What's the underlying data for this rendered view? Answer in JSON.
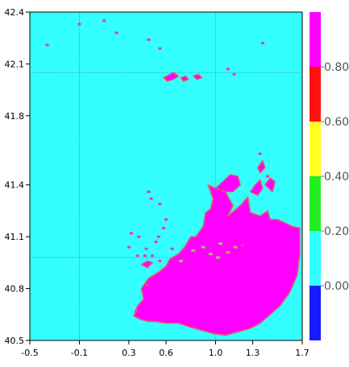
{
  "chart_data": {
    "type": "heatmap",
    "title": "",
    "xlabel": "",
    "ylabel": "",
    "xlim": [
      -0.5,
      1.7
    ],
    "ylim": [
      40.5,
      42.4
    ],
    "x_ticks": [
      "-0.5",
      "-0.1",
      "0.3",
      "0.6",
      "1.0",
      "1.3",
      "1.7"
    ],
    "x_tick_values": [
      -0.5,
      -0.1,
      0.3,
      0.6,
      1.0,
      1.3,
      1.7
    ],
    "y_ticks": [
      "42.4",
      "42.1",
      "41.8",
      "41.4",
      "41.1",
      "40.8",
      "40.5"
    ],
    "y_tick_values": [
      42.4,
      42.1,
      41.8,
      41.4,
      41.1,
      40.8,
      40.5
    ],
    "grid": true,
    "grid_lines": {
      "x": [
        -0.1,
        1.0
      ],
      "y": [
        42.05,
        40.98
      ]
    },
    "background_value_color": "#33ffff",
    "colorbar": {
      "levels": [
        {
          "range": [
            -0.2,
            0.0
          ],
          "color": "#1a1aff"
        },
        {
          "range": [
            0.0,
            0.2
          ],
          "color": "#33ffff"
        },
        {
          "range": [
            0.2,
            0.4
          ],
          "color": "#22ee22"
        },
        {
          "range": [
            0.4,
            0.6
          ],
          "color": "#ffff22"
        },
        {
          "range": [
            0.6,
            0.8
          ],
          "color": "#ff1111"
        },
        {
          "range": [
            0.8,
            1.0
          ],
          "color": "#ff00ff"
        }
      ],
      "labels": [
        "0.00",
        "0.20",
        "0.40",
        "0.60",
        "0.80"
      ]
    },
    "high_value_region": {
      "value": 0.9,
      "color": "#ff00ff",
      "edge_color": "#e06060",
      "outline": [
        [
          0.34,
          40.64
        ],
        [
          0.37,
          40.7
        ],
        [
          0.42,
          40.74
        ],
        [
          0.4,
          40.8
        ],
        [
          0.46,
          40.86
        ],
        [
          0.55,
          40.9
        ],
        [
          0.6,
          40.93
        ],
        [
          0.63,
          40.97
        ],
        [
          0.7,
          41.0
        ],
        [
          0.75,
          41.04
        ],
        [
          0.8,
          41.1
        ],
        [
          0.84,
          41.1
        ],
        [
          0.9,
          41.16
        ],
        [
          0.92,
          41.24
        ],
        [
          0.96,
          41.26
        ],
        [
          0.98,
          41.32
        ],
        [
          0.94,
          41.4
        ],
        [
          1.0,
          41.38
        ],
        [
          1.08,
          41.36
        ],
        [
          1.14,
          41.28
        ],
        [
          1.1,
          41.22
        ],
        [
          1.2,
          41.28
        ],
        [
          1.26,
          41.33
        ],
        [
          1.28,
          41.24
        ],
        [
          1.36,
          41.22
        ],
        [
          1.42,
          41.25
        ],
        [
          1.44,
          41.2
        ],
        [
          1.5,
          41.2
        ],
        [
          1.62,
          41.16
        ],
        [
          1.68,
          41.15
        ],
        [
          1.68,
          41.0
        ],
        [
          1.66,
          40.88
        ],
        [
          1.6,
          40.78
        ],
        [
          1.52,
          40.7
        ],
        [
          1.44,
          40.65
        ],
        [
          1.36,
          40.6
        ],
        [
          1.28,
          40.57
        ],
        [
          1.18,
          40.55
        ],
        [
          1.08,
          40.53
        ],
        [
          0.98,
          40.54
        ],
        [
          0.88,
          40.56
        ],
        [
          0.78,
          40.58
        ],
        [
          0.7,
          40.6
        ],
        [
          0.6,
          40.6
        ],
        [
          0.52,
          40.61
        ],
        [
          0.46,
          40.61
        ],
        [
          0.4,
          40.62
        ]
      ],
      "islands": [
        {
          "outline": [
            [
              1.0,
              41.38
            ],
            [
              1.06,
              41.42
            ],
            [
              1.12,
              41.46
            ],
            [
              1.18,
              41.45
            ],
            [
              1.2,
              41.4
            ],
            [
              1.14,
              41.36
            ],
            [
              1.08,
              41.36
            ]
          ]
        },
        {
          "outline": [
            [
              1.28,
              41.36
            ],
            [
              1.32,
              41.4
            ],
            [
              1.36,
              41.43
            ],
            [
              1.38,
              41.38
            ],
            [
              1.34,
              41.34
            ]
          ]
        },
        {
          "outline": [
            [
              1.4,
              41.4
            ],
            [
              1.44,
              41.44
            ],
            [
              1.48,
              41.42
            ],
            [
              1.46,
              41.36
            ]
          ]
        },
        {
          "outline": [
            [
              1.34,
              41.5
            ],
            [
              1.38,
              41.54
            ],
            [
              1.4,
              41.5
            ],
            [
              1.36,
              41.47
            ]
          ]
        },
        {
          "outline": [
            [
              0.58,
              42.02
            ],
            [
              0.63,
              42.04
            ],
            [
              0.66,
              42.05
            ],
            [
              0.7,
              42.03
            ],
            [
              0.66,
              42.01
            ],
            [
              0.61,
              42.0
            ]
          ]
        },
        {
          "outline": [
            [
              0.82,
              42.03
            ],
            [
              0.86,
              42.04
            ],
            [
              0.89,
              42.02
            ],
            [
              0.85,
              42.01
            ]
          ]
        },
        {
          "outline": [
            [
              0.72,
              42.02
            ],
            [
              0.76,
              42.03
            ],
            [
              0.78,
              42.01
            ],
            [
              0.74,
              42.0
            ]
          ]
        },
        {
          "outline": [
            [
              0.4,
              40.94
            ],
            [
              0.45,
              40.96
            ],
            [
              0.49,
              40.95
            ],
            [
              0.45,
              40.92
            ]
          ]
        }
      ]
    },
    "scattered_high_points": [
      [
        0.1,
        42.35
      ],
      [
        0.2,
        42.28
      ],
      [
        0.46,
        42.24
      ],
      [
        0.55,
        42.19
      ],
      [
        1.38,
        42.22
      ],
      [
        1.1,
        42.07
      ],
      [
        1.15,
        42.04
      ],
      [
        0.46,
        41.36
      ],
      [
        0.48,
        41.32
      ],
      [
        0.55,
        41.29
      ],
      [
        0.6,
        41.2
      ],
      [
        0.58,
        41.15
      ],
      [
        0.54,
        41.1
      ],
      [
        0.52,
        41.07
      ],
      [
        0.44,
        41.03
      ],
      [
        0.38,
        41.1
      ],
      [
        0.32,
        41.12
      ],
      [
        0.3,
        41.04
      ],
      [
        0.49,
        40.99
      ],
      [
        0.55,
        40.96
      ],
      [
        0.43,
        40.99
      ],
      [
        0.37,
        40.99
      ],
      [
        0.36,
        40.67
      ],
      [
        0.45,
        40.82
      ],
      [
        -0.36,
        42.21
      ],
      [
        -0.1,
        42.33
      ],
      [
        1.36,
        41.58
      ],
      [
        1.42,
        41.45
      ],
      [
        0.65,
        41.03
      ],
      [
        1.22,
        41.05
      ]
    ],
    "interior_low_points": [
      [
        0.82,
        41.02
      ],
      [
        0.9,
        41.04
      ],
      [
        0.96,
        41.0
      ],
      [
        1.02,
        40.98
      ],
      [
        1.1,
        41.01
      ],
      [
        1.16,
        41.04
      ],
      [
        1.04,
        41.06
      ],
      [
        0.72,
        40.96
      ]
    ]
  }
}
